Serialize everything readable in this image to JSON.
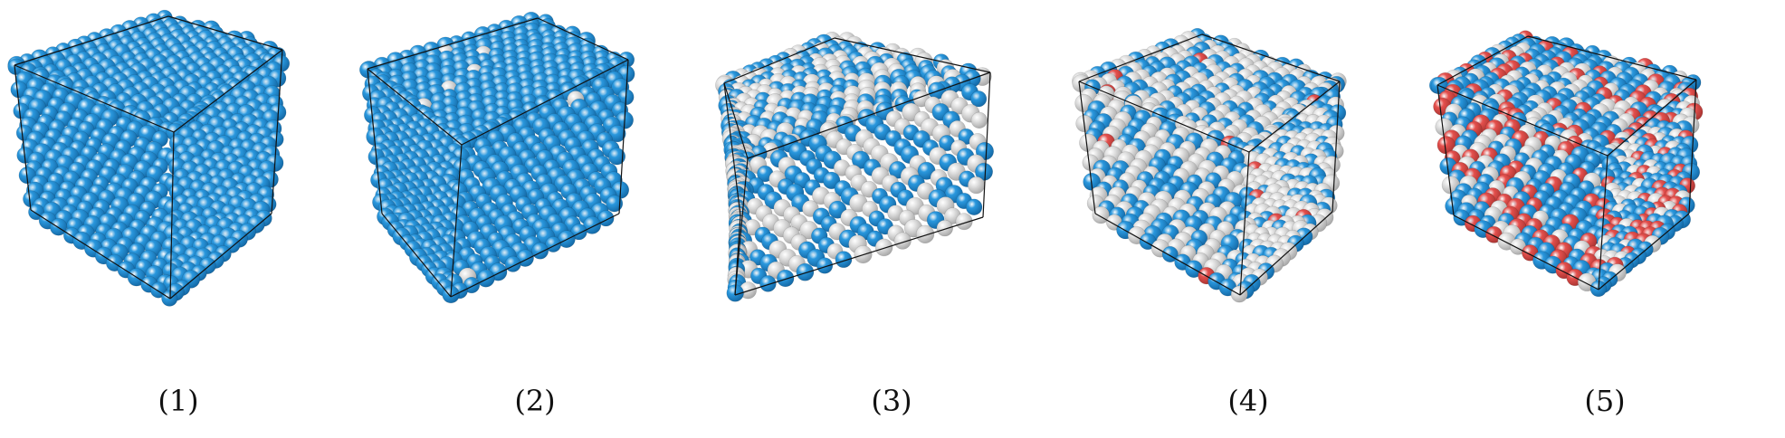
{
  "colors": {
    "blue": "#2a98de",
    "white": "#e2e2e2",
    "red": "#e5504d",
    "edge": "#111111"
  },
  "panels": [
    {
      "caption": "(1)",
      "mix": {
        "blue": 1.0,
        "white": 0.0,
        "red": 0.0
      }
    },
    {
      "caption": "(2)",
      "mix": {
        "blue": 0.985,
        "white": 0.015,
        "red": 0.0
      }
    },
    {
      "caption": "(3)",
      "mix": {
        "blue": 0.52,
        "white": 0.48,
        "red": 0.0
      }
    },
    {
      "caption": "(4)",
      "mix": {
        "blue": 0.4,
        "white": 0.58,
        "red": 0.02
      }
    },
    {
      "caption": "(5)",
      "mix": {
        "blue": 0.52,
        "white": 0.24,
        "red": 0.24
      }
    }
  ]
}
